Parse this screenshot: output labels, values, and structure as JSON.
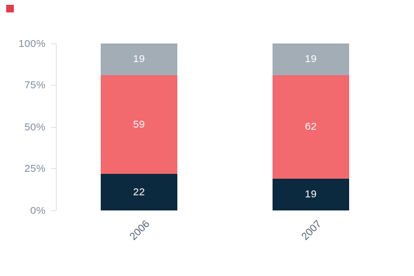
{
  "brand": {
    "mark_color": "#e23c4a"
  },
  "chart_data": {
    "type": "bar",
    "stacked": true,
    "orientation": "vertical",
    "title": "",
    "xlabel": "",
    "ylabel": "",
    "categories": [
      "2006",
      "2007"
    ],
    "series": [
      {
        "name": "bottom-segment",
        "color": "#0c2a3f",
        "values": [
          22,
          19
        ]
      },
      {
        "name": "middle-segment",
        "color": "#f2696e",
        "values": [
          59,
          62
        ]
      },
      {
        "name": "top-segment",
        "color": "#a2adb6",
        "values": [
          19,
          19
        ]
      }
    ],
    "value_labels_shown": true,
    "value_label_color": "#ffffff",
    "y_ticks": [
      "100%",
      "75%",
      "50%",
      "25%",
      "0%"
    ],
    "ylim": [
      0,
      100
    ],
    "grid": false,
    "legend": false
  },
  "axis_style": {
    "tick_label_color": "#7f8c9c",
    "line_color": "#d7dce1",
    "category_label_color": "#53606f"
  }
}
